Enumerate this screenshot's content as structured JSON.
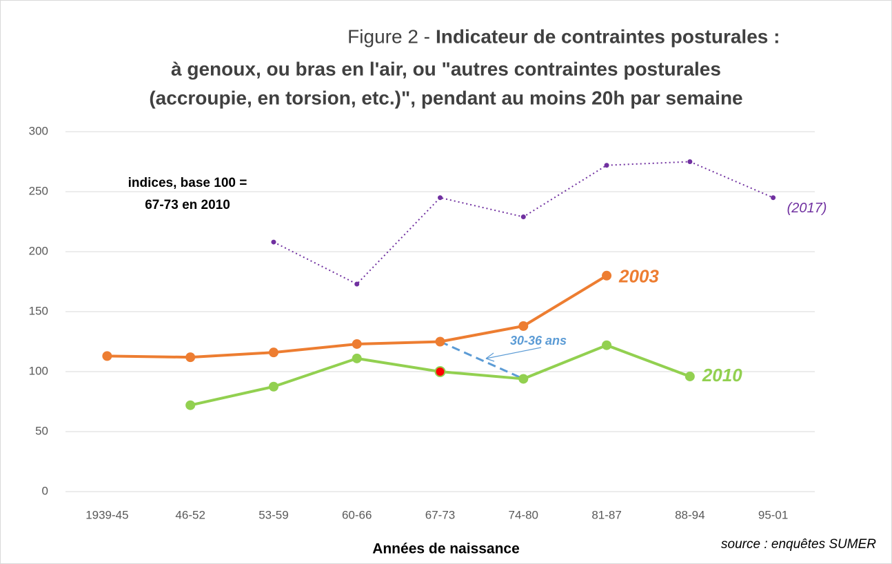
{
  "chart_data": {
    "type": "line",
    "title": {
      "label": "Figure 2 -",
      "lines": [
        "Indicateur de contraintes posturales :",
        "à genoux, ou bras en l'air, ou \"autres contraintes posturales",
        "(accroupie, en torsion, etc.)\", pendant au moins 20h par semaine"
      ]
    },
    "categories": [
      "1939-45",
      "46-52",
      "53-59",
      "60-66",
      "67-73",
      "74-80",
      "81-87",
      "88-94",
      "95-01"
    ],
    "series": [
      {
        "name": "2003",
        "color": "#ED7D31",
        "style": "solid",
        "values": [
          113,
          112,
          116,
          123,
          125,
          138,
          180,
          null,
          null
        ]
      },
      {
        "name": "2010",
        "color": "#92D050",
        "style": "solid",
        "values": [
          null,
          72,
          87.5,
          111,
          100,
          94,
          122,
          96,
          null
        ]
      },
      {
        "name": "(2017)",
        "color": "#7030A0",
        "style": "dotted",
        "values": [
          null,
          null,
          208,
          173,
          245,
          229,
          272,
          275,
          245
        ]
      }
    ],
    "highlight": {
      "series": 1,
      "index": 4,
      "color": "#FF0000"
    },
    "ylim": [
      0,
      300
    ],
    "yticks": [
      0,
      50,
      100,
      150,
      200,
      250,
      300
    ],
    "grid": true,
    "x_label": "Années de naissance",
    "annotations": {
      "base_note": [
        "indices, base 100 =",
        "67-73 en 2010"
      ],
      "cohort": "30-36 ans",
      "source": "source : enquêtes SUMER"
    }
  }
}
